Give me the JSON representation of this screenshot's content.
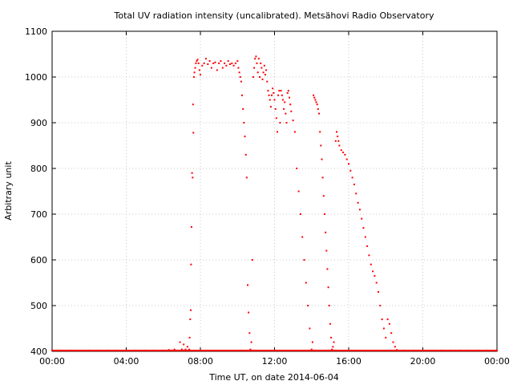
{
  "chart_data": {
    "type": "scatter",
    "title": "Total UV radiation intensity (uncalibrated). Metsähovi Radio Observatory",
    "xlabel": "Time UT, on date 2014-06-04",
    "ylabel": "Arbitrary unit",
    "xlim": [
      0,
      24
    ],
    "ylim": [
      400,
      1100
    ],
    "x_ticks": [
      {
        "value": 0,
        "label": "00:00"
      },
      {
        "value": 4,
        "label": "04:00"
      },
      {
        "value": 8,
        "label": "08:00"
      },
      {
        "value": 12,
        "label": "12:00"
      },
      {
        "value": 16,
        "label": "16:00"
      },
      {
        "value": 20,
        "label": "20:00"
      },
      {
        "value": 24,
        "label": "00:00"
      }
    ],
    "y_ticks": [
      {
        "value": 400,
        "label": "400"
      },
      {
        "value": 500,
        "label": "500"
      },
      {
        "value": 600,
        "label": "600"
      },
      {
        "value": 700,
        "label": "700"
      },
      {
        "value": 800,
        "label": "800"
      },
      {
        "value": 900,
        "label": "900"
      },
      {
        "value": 1000,
        "label": "1000"
      },
      {
        "value": 1100,
        "label": "1100"
      }
    ],
    "grid": true,
    "series": [
      {
        "color": "#ff0000",
        "marker": "dot",
        "points": [
          [
            0.0,
            402
          ],
          [
            0.5,
            402
          ],
          [
            1.0,
            402
          ],
          [
            1.5,
            402
          ],
          [
            2.0,
            402
          ],
          [
            2.5,
            402
          ],
          [
            3.0,
            402
          ],
          [
            3.5,
            402
          ],
          [
            4.0,
            402
          ],
          [
            4.5,
            402
          ],
          [
            5.0,
            402
          ],
          [
            5.5,
            402
          ],
          [
            6.0,
            402
          ],
          [
            6.3,
            403
          ],
          [
            6.6,
            404
          ],
          [
            6.9,
            420
          ],
          [
            7.0,
            404
          ],
          [
            7.1,
            415
          ],
          [
            7.2,
            404
          ],
          [
            7.3,
            410
          ],
          [
            7.4,
            404
          ],
          [
            7.42,
            430
          ],
          [
            7.45,
            470
          ],
          [
            7.48,
            490
          ],
          [
            7.5,
            590
          ],
          [
            7.52,
            672
          ],
          [
            7.55,
            790
          ],
          [
            7.58,
            780
          ],
          [
            7.6,
            940
          ],
          [
            7.62,
            878
          ],
          [
            7.65,
            1000
          ],
          [
            7.68,
            1010
          ],
          [
            7.72,
            1020
          ],
          [
            7.76,
            1030
          ],
          [
            7.8,
            1035
          ],
          [
            7.85,
            1038
          ],
          [
            7.9,
            1030
          ],
          [
            7.95,
            1015
          ],
          [
            8.0,
            1005
          ],
          [
            8.1,
            1025
          ],
          [
            8.2,
            1030
          ],
          [
            8.3,
            1040
          ],
          [
            8.4,
            1028
          ],
          [
            8.5,
            1035
          ],
          [
            8.6,
            1020
          ],
          [
            8.7,
            1030
          ],
          [
            8.8,
            1032
          ],
          [
            8.9,
            1015
          ],
          [
            9.0,
            1030
          ],
          [
            9.1,
            1035
          ],
          [
            9.2,
            1020
          ],
          [
            9.3,
            1030
          ],
          [
            9.4,
            1025
          ],
          [
            9.5,
            1035
          ],
          [
            9.6,
            1028
          ],
          [
            9.7,
            1030
          ],
          [
            9.8,
            1025
          ],
          [
            9.9,
            1030
          ],
          [
            10.0,
            1035
          ],
          [
            10.05,
            1020
          ],
          [
            10.1,
            1010
          ],
          [
            10.15,
            1000
          ],
          [
            10.2,
            990
          ],
          [
            10.25,
            960
          ],
          [
            10.3,
            930
          ],
          [
            10.35,
            900
          ],
          [
            10.4,
            870
          ],
          [
            10.45,
            830
          ],
          [
            10.5,
            780
          ],
          [
            10.55,
            545
          ],
          [
            10.6,
            485
          ],
          [
            10.65,
            440
          ],
          [
            10.7,
            404
          ],
          [
            10.75,
            420
          ],
          [
            10.8,
            600
          ],
          [
            10.85,
            1000
          ],
          [
            10.9,
            1020
          ],
          [
            10.95,
            1040
          ],
          [
            11.0,
            1045
          ],
          [
            11.05,
            1030
          ],
          [
            11.1,
            1010
          ],
          [
            11.15,
            1040
          ],
          [
            11.2,
            1000
          ],
          [
            11.25,
            1030
          ],
          [
            11.3,
            1020
          ],
          [
            11.35,
            995
          ],
          [
            11.4,
            1010
          ],
          [
            11.45,
            1025
          ],
          [
            11.5,
            1005
          ],
          [
            11.55,
            1015
          ],
          [
            11.6,
            990
          ],
          [
            11.65,
            970
          ],
          [
            11.7,
            960
          ],
          [
            11.75,
            950
          ],
          [
            11.8,
            935
          ],
          [
            11.85,
            960
          ],
          [
            11.9,
            975
          ],
          [
            11.95,
            965
          ],
          [
            12.0,
            950
          ],
          [
            12.05,
            930
          ],
          [
            12.1,
            910
          ],
          [
            12.15,
            880
          ],
          [
            12.2,
            960
          ],
          [
            12.25,
            970
          ],
          [
            12.3,
            900
          ],
          [
            12.35,
            970
          ],
          [
            12.4,
            960
          ],
          [
            12.45,
            950
          ],
          [
            12.5,
            930
          ],
          [
            12.55,
            945
          ],
          [
            12.6,
            920
          ],
          [
            12.65,
            900
          ],
          [
            12.7,
            965
          ],
          [
            12.75,
            970
          ],
          [
            12.8,
            955
          ],
          [
            12.85,
            940
          ],
          [
            12.9,
            925
          ],
          [
            13.0,
            905
          ],
          [
            13.1,
            880
          ],
          [
            13.2,
            800
          ],
          [
            13.3,
            750
          ],
          [
            13.4,
            700
          ],
          [
            13.5,
            650
          ],
          [
            13.6,
            600
          ],
          [
            13.7,
            550
          ],
          [
            13.8,
            500
          ],
          [
            13.9,
            450
          ],
          [
            14.0,
            404
          ],
          [
            14.05,
            420
          ],
          [
            14.1,
            960
          ],
          [
            14.15,
            955
          ],
          [
            14.2,
            950
          ],
          [
            14.25,
            945
          ],
          [
            14.3,
            940
          ],
          [
            14.35,
            930
          ],
          [
            14.4,
            920
          ],
          [
            14.45,
            880
          ],
          [
            14.5,
            850
          ],
          [
            14.55,
            820
          ],
          [
            14.6,
            780
          ],
          [
            14.65,
            740
          ],
          [
            14.7,
            700
          ],
          [
            14.75,
            660
          ],
          [
            14.8,
            620
          ],
          [
            14.85,
            580
          ],
          [
            14.9,
            540
          ],
          [
            14.95,
            500
          ],
          [
            15.0,
            460
          ],
          [
            15.05,
            430
          ],
          [
            15.1,
            404
          ],
          [
            15.15,
            410
          ],
          [
            15.2,
            420
          ],
          [
            15.3,
            860
          ],
          [
            15.35,
            880
          ],
          [
            15.4,
            870
          ],
          [
            15.45,
            860
          ],
          [
            15.5,
            850
          ],
          [
            15.6,
            840
          ],
          [
            15.7,
            835
          ],
          [
            15.8,
            830
          ],
          [
            15.9,
            820
          ],
          [
            16.0,
            810
          ],
          [
            16.1,
            795
          ],
          [
            16.2,
            780
          ],
          [
            16.3,
            765
          ],
          [
            16.4,
            745
          ],
          [
            16.5,
            725
          ],
          [
            16.6,
            710
          ],
          [
            16.7,
            690
          ],
          [
            16.8,
            670
          ],
          [
            16.9,
            650
          ],
          [
            17.0,
            630
          ],
          [
            17.1,
            610
          ],
          [
            17.2,
            590
          ],
          [
            17.3,
            575
          ],
          [
            17.4,
            565
          ],
          [
            17.5,
            550
          ],
          [
            17.6,
            530
          ],
          [
            17.7,
            500
          ],
          [
            17.8,
            470
          ],
          [
            17.9,
            450
          ],
          [
            18.0,
            430
          ],
          [
            18.1,
            470
          ],
          [
            18.2,
            460
          ],
          [
            18.3,
            440
          ],
          [
            18.4,
            420
          ],
          [
            18.5,
            410
          ],
          [
            18.6,
            403
          ],
          [
            19.0,
            402
          ],
          [
            19.5,
            402
          ],
          [
            20.0,
            402
          ],
          [
            20.5,
            402
          ],
          [
            21.0,
            402
          ],
          [
            21.5,
            402
          ],
          [
            22.0,
            402
          ],
          [
            22.5,
            402
          ],
          [
            23.0,
            402
          ],
          [
            23.5,
            402
          ],
          [
            24.0,
            402
          ]
        ]
      }
    ]
  }
}
